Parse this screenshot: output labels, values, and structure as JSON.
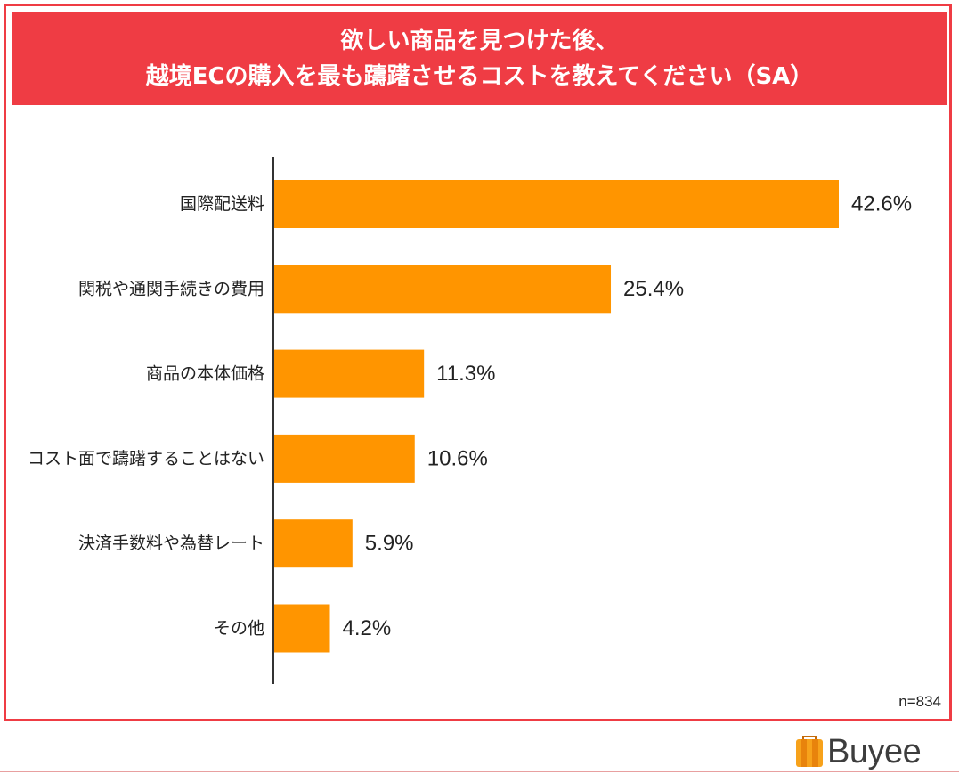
{
  "header": {
    "title_line1": "欲しい商品を見つけた後、",
    "title_line2": "越境ECの購入を最も躊躇させるコストを教えてください（SA）"
  },
  "sample_size": "n=834",
  "brand": {
    "name": "Buyee",
    "logo_icon": "buyee-bag-icon"
  },
  "colors": {
    "bar": "#ff9500",
    "accent": "#ef3c44"
  },
  "chart_data": {
    "type": "bar",
    "orientation": "horizontal",
    "title": "欲しい商品を見つけた後、越境ECの購入を最も躊躇させるコストを教えてください（SA）",
    "categories": [
      "国際配送料",
      "関税や通関手続きの費用",
      "商品の本体価格",
      "コスト面で躊躇することはない",
      "決済手数料や為替レート",
      "その他"
    ],
    "values": [
      42.6,
      25.4,
      11.3,
      10.6,
      5.9,
      4.2
    ],
    "value_labels": [
      "42.6%",
      "25.4%",
      "11.3%",
      "10.6%",
      "5.9%",
      "4.2%"
    ],
    "unit": "%",
    "xlim": [
      0,
      42.6
    ],
    "grid": false,
    "legend": "none"
  }
}
